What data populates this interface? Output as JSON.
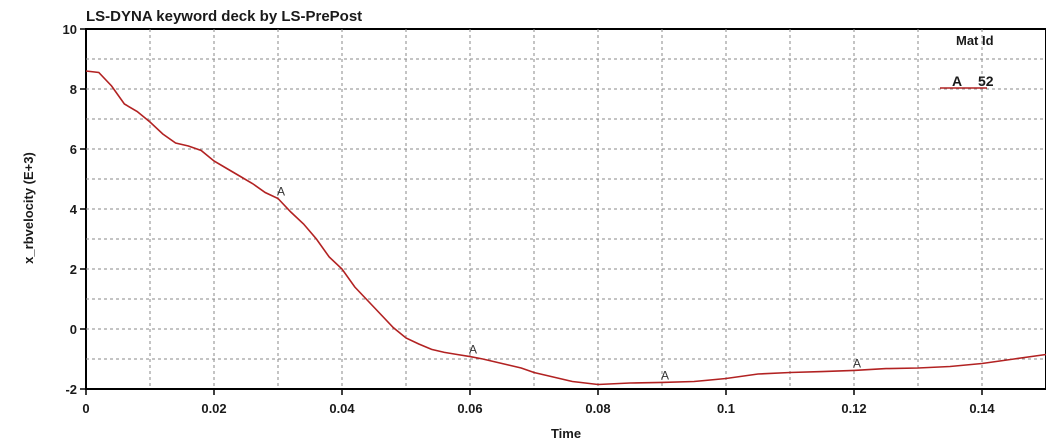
{
  "chart_data": {
    "type": "line",
    "title": "LS-DYNA keyword deck by LS-PrePost",
    "xlabel": "Time",
    "ylabel": "x_rbvelocity (E+3)",
    "xlim": [
      0,
      0.15
    ],
    "ylim": [
      -2,
      10
    ],
    "x_ticks": [
      "0",
      "0.02",
      "0.04",
      "0.06",
      "0.08",
      "0.1",
      "0.12",
      "0.14"
    ],
    "y_ticks": [
      "-2",
      "0",
      "2",
      "4",
      "6",
      "8",
      "10"
    ],
    "grid": true,
    "legend": {
      "title": "Mat Id",
      "placement": "top-right",
      "entries": [
        {
          "marker": "A",
          "label": "52"
        }
      ]
    },
    "series": [
      {
        "name": "52",
        "marker": "A",
        "color": "#b22222",
        "x": [
          0,
          0.002,
          0.004,
          0.006,
          0.008,
          0.01,
          0.012,
          0.014,
          0.016,
          0.018,
          0.02,
          0.022,
          0.024,
          0.026,
          0.028,
          0.03,
          0.032,
          0.034,
          0.036,
          0.038,
          0.04,
          0.042,
          0.044,
          0.046,
          0.048,
          0.05,
          0.052,
          0.054,
          0.056,
          0.058,
          0.06,
          0.062,
          0.064,
          0.066,
          0.068,
          0.07,
          0.072,
          0.074,
          0.076,
          0.078,
          0.08,
          0.085,
          0.09,
          0.095,
          0.1,
          0.105,
          0.11,
          0.115,
          0.12,
          0.125,
          0.13,
          0.135,
          0.14,
          0.145,
          0.15
        ],
        "y": [
          8.6,
          8.55,
          8.1,
          7.5,
          7.25,
          6.9,
          6.5,
          6.2,
          6.1,
          5.95,
          5.6,
          5.35,
          5.1,
          4.85,
          4.55,
          4.35,
          3.9,
          3.5,
          3.0,
          2.4,
          2.0,
          1.4,
          0.95,
          0.5,
          0.05,
          -0.3,
          -0.5,
          -0.68,
          -0.78,
          -0.85,
          -0.92,
          -1.0,
          -1.1,
          -1.2,
          -1.3,
          -1.45,
          -1.55,
          -1.65,
          -1.75,
          -1.8,
          -1.85,
          -1.8,
          -1.78,
          -1.75,
          -1.65,
          -1.5,
          -1.45,
          -1.42,
          -1.38,
          -1.32,
          -1.3,
          -1.25,
          -1.15,
          -1.0,
          -0.85
        ],
        "marker_x": [
          0.03,
          0.06,
          0.09,
          0.12
        ]
      }
    ]
  }
}
